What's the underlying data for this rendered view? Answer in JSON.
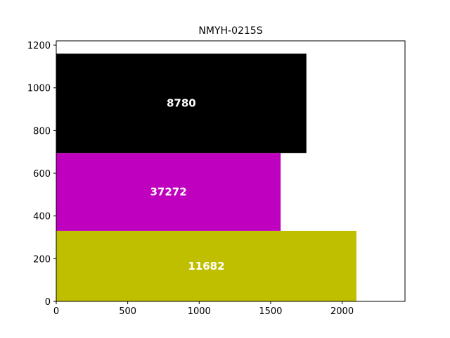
{
  "chart_data": {
    "type": "bar",
    "title": "NMYH-0215S",
    "xlabel": "",
    "ylabel": "",
    "grid": false,
    "xlim": [
      0,
      2440
    ],
    "ylim": [
      0,
      1220
    ],
    "x_ticks": [
      0,
      500,
      1000,
      1500,
      2000
    ],
    "y_ticks": [
      0,
      200,
      400,
      600,
      800,
      1000,
      1200
    ],
    "bars": [
      {
        "label": "11682",
        "width": 2100,
        "bottom": 0,
        "top": 330,
        "color": "#bfbf00"
      },
      {
        "label": "37272",
        "width": 1570,
        "bottom": 330,
        "top": 695,
        "color": "#bf00bf"
      },
      {
        "label": "8780",
        "width": 1750,
        "bottom": 695,
        "top": 1160,
        "color": "#000000"
      }
    ]
  }
}
